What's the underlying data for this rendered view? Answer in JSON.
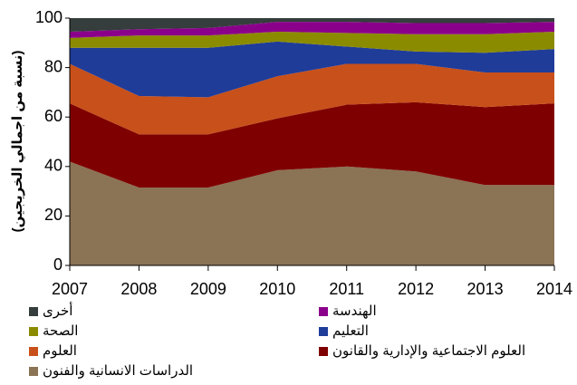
{
  "chart_data": {
    "type": "stacked_area",
    "y_label": "(نسبة من اجمالي الخريجين)",
    "x": [
      2007,
      2008,
      2009,
      2010,
      2011,
      2012,
      2013,
      2014
    ],
    "xlim": [
      2007,
      2014
    ],
    "xticks": [
      2007,
      2008,
      2009,
      2010,
      2011,
      2012,
      2013,
      2014
    ],
    "ylim": [
      0,
      100
    ],
    "yticks": [
      0,
      20,
      40,
      60,
      80,
      100
    ],
    "series": [
      {
        "name": "الدراسات الانسانية والفنون",
        "color": "#8b7355",
        "values": [
          42,
          31.5,
          31.5,
          38.5,
          40,
          38,
          32.5,
          32.5
        ]
      },
      {
        "name": "العلوم الاجتماعية والإدارية والقانون",
        "color": "#7f0000",
        "values": [
          23.5,
          21.5,
          21.5,
          21,
          25,
          28,
          31.5,
          33
        ]
      },
      {
        "name": "العلوم",
        "color": "#c8501a",
        "values": [
          16,
          15.5,
          15,
          17,
          16.5,
          15.5,
          14,
          12.5
        ]
      },
      {
        "name": "التعليم",
        "color": "#1f3c99",
        "values": [
          6.5,
          19.5,
          20,
          14,
          7,
          5,
          8,
          9.5
        ]
      },
      {
        "name": "الصحة",
        "color": "#8b8b00",
        "values": [
          4,
          5,
          5,
          4,
          5.5,
          7,
          7.5,
          7
        ]
      },
      {
        "name": "الهندسة",
        "color": "#8b008b",
        "values": [
          2.5,
          2.5,
          3,
          4,
          4.5,
          4.5,
          4.5,
          4
        ]
      },
      {
        "name": "أخرى",
        "color": "#353d3d",
        "values": [
          5.5,
          4.5,
          4,
          1.5,
          1.5,
          2,
          2,
          1.5
        ]
      }
    ]
  }
}
